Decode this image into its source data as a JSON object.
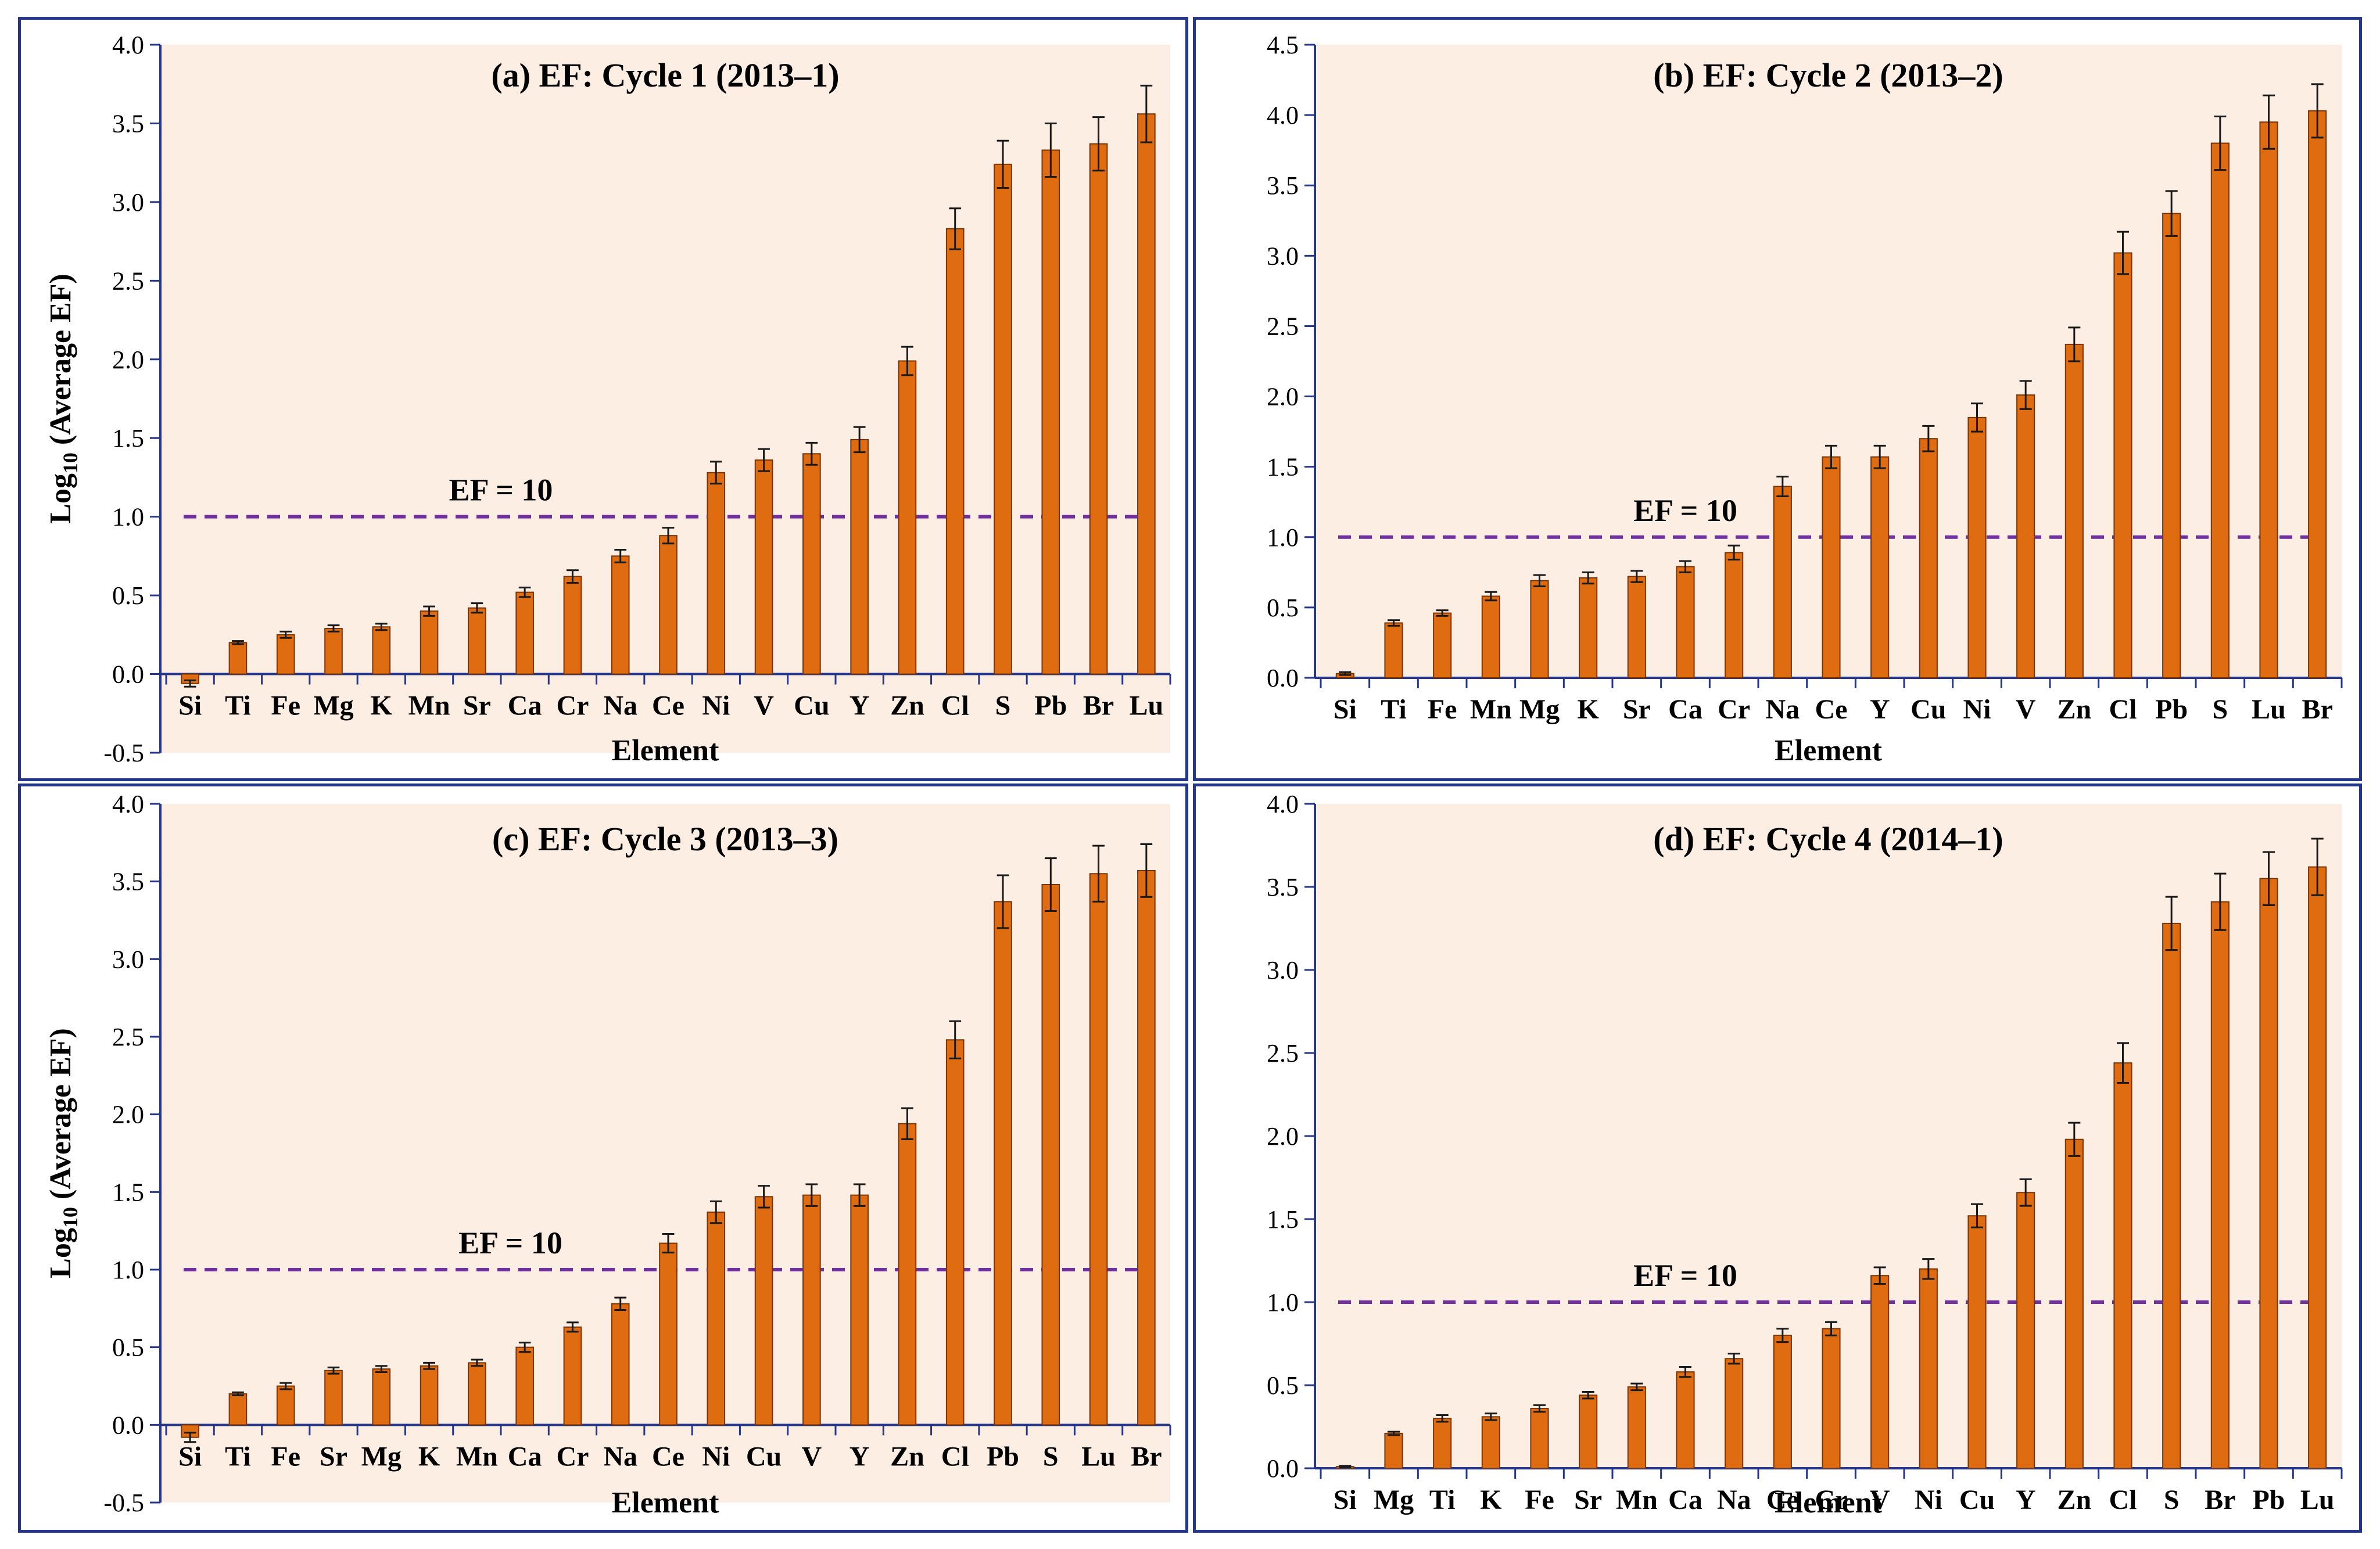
{
  "colors": {
    "bar": "#e06c12",
    "bar_edge": "#7a3506",
    "plot_bg": "#fdeee4",
    "axis": "#24378c",
    "ref_line": "#7030a0",
    "error_bar": "#1a1a1a"
  },
  "chart_data": [
    {
      "type": "bar",
      "title": "(a) EF: Cycle 1 (2013–1)",
      "xlabel": "Element",
      "ylabel": "Log10 (Average EF)",
      "ylim": [
        -0.5,
        4.0
      ],
      "yticks": [
        -0.5,
        0.0,
        0.5,
        1.0,
        1.5,
        2.0,
        2.5,
        3.0,
        3.5,
        4.0
      ],
      "ytick_labels": [
        "-0.5",
        "0.0",
        "0.5",
        "1.0",
        "1.5",
        "2.0",
        "2.5",
        "3.0",
        "3.5",
        "4.0"
      ],
      "categories": [
        "Si",
        "Ti",
        "Fe",
        "Mg",
        "K",
        "Mn",
        "Sr",
        "Ca",
        "Cr",
        "Na",
        "Ce",
        "Ni",
        "V",
        "Cu",
        "Y",
        "Zn",
        "Cl",
        "S",
        "Pb",
        "Br",
        "Lu"
      ],
      "values": [
        -0.06,
        0.2,
        0.25,
        0.29,
        0.3,
        0.4,
        0.42,
        0.52,
        0.62,
        0.75,
        0.88,
        1.28,
        1.36,
        1.4,
        1.49,
        1.99,
        2.83,
        3.24,
        3.33,
        3.37,
        3.56
      ],
      "errors": [
        0.02,
        0.01,
        0.02,
        0.02,
        0.02,
        0.03,
        0.03,
        0.03,
        0.04,
        0.04,
        0.05,
        0.07,
        0.07,
        0.07,
        0.08,
        0.09,
        0.13,
        0.15,
        0.17,
        0.17,
        0.18
      ],
      "reference_line": {
        "value": 1.0,
        "label": "EF = 10",
        "label_x": 6.5
      }
    },
    {
      "type": "bar",
      "title": "(b) EF: Cycle 2 (2013–2)",
      "xlabel": "Element",
      "ylabel": "",
      "ylim": [
        0.0,
        4.5
      ],
      "yticks": [
        0.0,
        0.5,
        1.0,
        1.5,
        2.0,
        2.5,
        3.0,
        3.5,
        4.0,
        4.5
      ],
      "ytick_labels": [
        "0.0",
        "0.5",
        "1.0",
        "1.5",
        "2.0",
        "2.5",
        "3.0",
        "3.5",
        "4.0",
        "4.5"
      ],
      "categories": [
        "Si",
        "Ti",
        "Fe",
        "Mn",
        "Mg",
        "K",
        "Sr",
        "Ca",
        "Cr",
        "Na",
        "Ce",
        "Y",
        "Cu",
        "Ni",
        "V",
        "Zn",
        "Cl",
        "Pb",
        "S",
        "Lu",
        "Br"
      ],
      "values": [
        0.03,
        0.39,
        0.46,
        0.58,
        0.69,
        0.71,
        0.72,
        0.79,
        0.89,
        1.36,
        1.57,
        1.57,
        1.7,
        1.85,
        2.01,
        2.37,
        3.02,
        3.3,
        3.8,
        3.95,
        4.03
      ],
      "errors": [
        0.01,
        0.02,
        0.02,
        0.03,
        0.04,
        0.04,
        0.04,
        0.04,
        0.05,
        0.07,
        0.08,
        0.08,
        0.09,
        0.1,
        0.1,
        0.12,
        0.15,
        0.16,
        0.19,
        0.19,
        0.19
      ],
      "reference_line": {
        "value": 1.0,
        "label": "EF = 10",
        "label_x": 7.0
      }
    },
    {
      "type": "bar",
      "title": "(c) EF: Cycle 3 (2013–3)",
      "xlabel": "Element",
      "ylabel": "Log10 (Average EF)",
      "ylim": [
        -0.5,
        4.0
      ],
      "yticks": [
        -0.5,
        0.0,
        0.5,
        1.0,
        1.5,
        2.0,
        2.5,
        3.0,
        3.5,
        4.0
      ],
      "ytick_labels": [
        "-0.5",
        "0.0",
        "0.5",
        "1.0",
        "1.5",
        "2.0",
        "2.5",
        "3.0",
        "3.5",
        "4.0"
      ],
      "categories": [
        "Si",
        "Ti",
        "Fe",
        "Sr",
        "Mg",
        "K",
        "Mn",
        "Ca",
        "Cr",
        "Na",
        "Ce",
        "Ni",
        "Cu",
        "V",
        "Y",
        "Zn",
        "Cl",
        "Pb",
        "S",
        "Lu",
        "Br"
      ],
      "values": [
        -0.08,
        0.2,
        0.25,
        0.35,
        0.36,
        0.38,
        0.4,
        0.5,
        0.63,
        0.78,
        1.17,
        1.37,
        1.47,
        1.48,
        1.48,
        1.94,
        2.48,
        3.37,
        3.48,
        3.55,
        3.57
      ],
      "errors": [
        0.03,
        0.01,
        0.02,
        0.02,
        0.02,
        0.02,
        0.02,
        0.03,
        0.03,
        0.04,
        0.06,
        0.07,
        0.07,
        0.07,
        0.07,
        0.1,
        0.12,
        0.17,
        0.17,
        0.18,
        0.17
      ],
      "reference_line": {
        "value": 1.0,
        "label": "EF = 10",
        "label_x": 6.7
      }
    },
    {
      "type": "bar",
      "title": "(d) EF: Cycle 4 (2014–1)",
      "xlabel": "Element",
      "ylabel": "",
      "ylim": [
        0.0,
        4.0
      ],
      "yticks": [
        0.0,
        0.5,
        1.0,
        1.5,
        2.0,
        2.5,
        3.0,
        3.5,
        4.0
      ],
      "ytick_labels": [
        "0.0",
        "0.5",
        "1.0",
        "1.5",
        "2.0",
        "2.5",
        "3.0",
        "3.5",
        "4.0"
      ],
      "categories": [
        "Si",
        "Mg",
        "Ti",
        "K",
        "Fe",
        "Sr",
        "Mn",
        "Ca",
        "Na",
        "Ce",
        "Cr",
        "V",
        "Ni",
        "Cu",
        "Y",
        "Zn",
        "Cl",
        "S",
        "Br",
        "Pb",
        "Lu"
      ],
      "values": [
        0.01,
        0.21,
        0.3,
        0.31,
        0.36,
        0.44,
        0.49,
        0.58,
        0.66,
        0.8,
        0.84,
        1.16,
        1.2,
        1.52,
        1.66,
        1.98,
        2.44,
        3.28,
        3.41,
        3.55,
        3.62
      ],
      "errors": [
        0.005,
        0.01,
        0.02,
        0.02,
        0.02,
        0.02,
        0.02,
        0.03,
        0.03,
        0.04,
        0.04,
        0.05,
        0.06,
        0.07,
        0.08,
        0.1,
        0.12,
        0.16,
        0.17,
        0.16,
        0.17
      ],
      "reference_line": {
        "value": 1.0,
        "label": "EF = 10",
        "label_x": 7.0
      }
    }
  ]
}
